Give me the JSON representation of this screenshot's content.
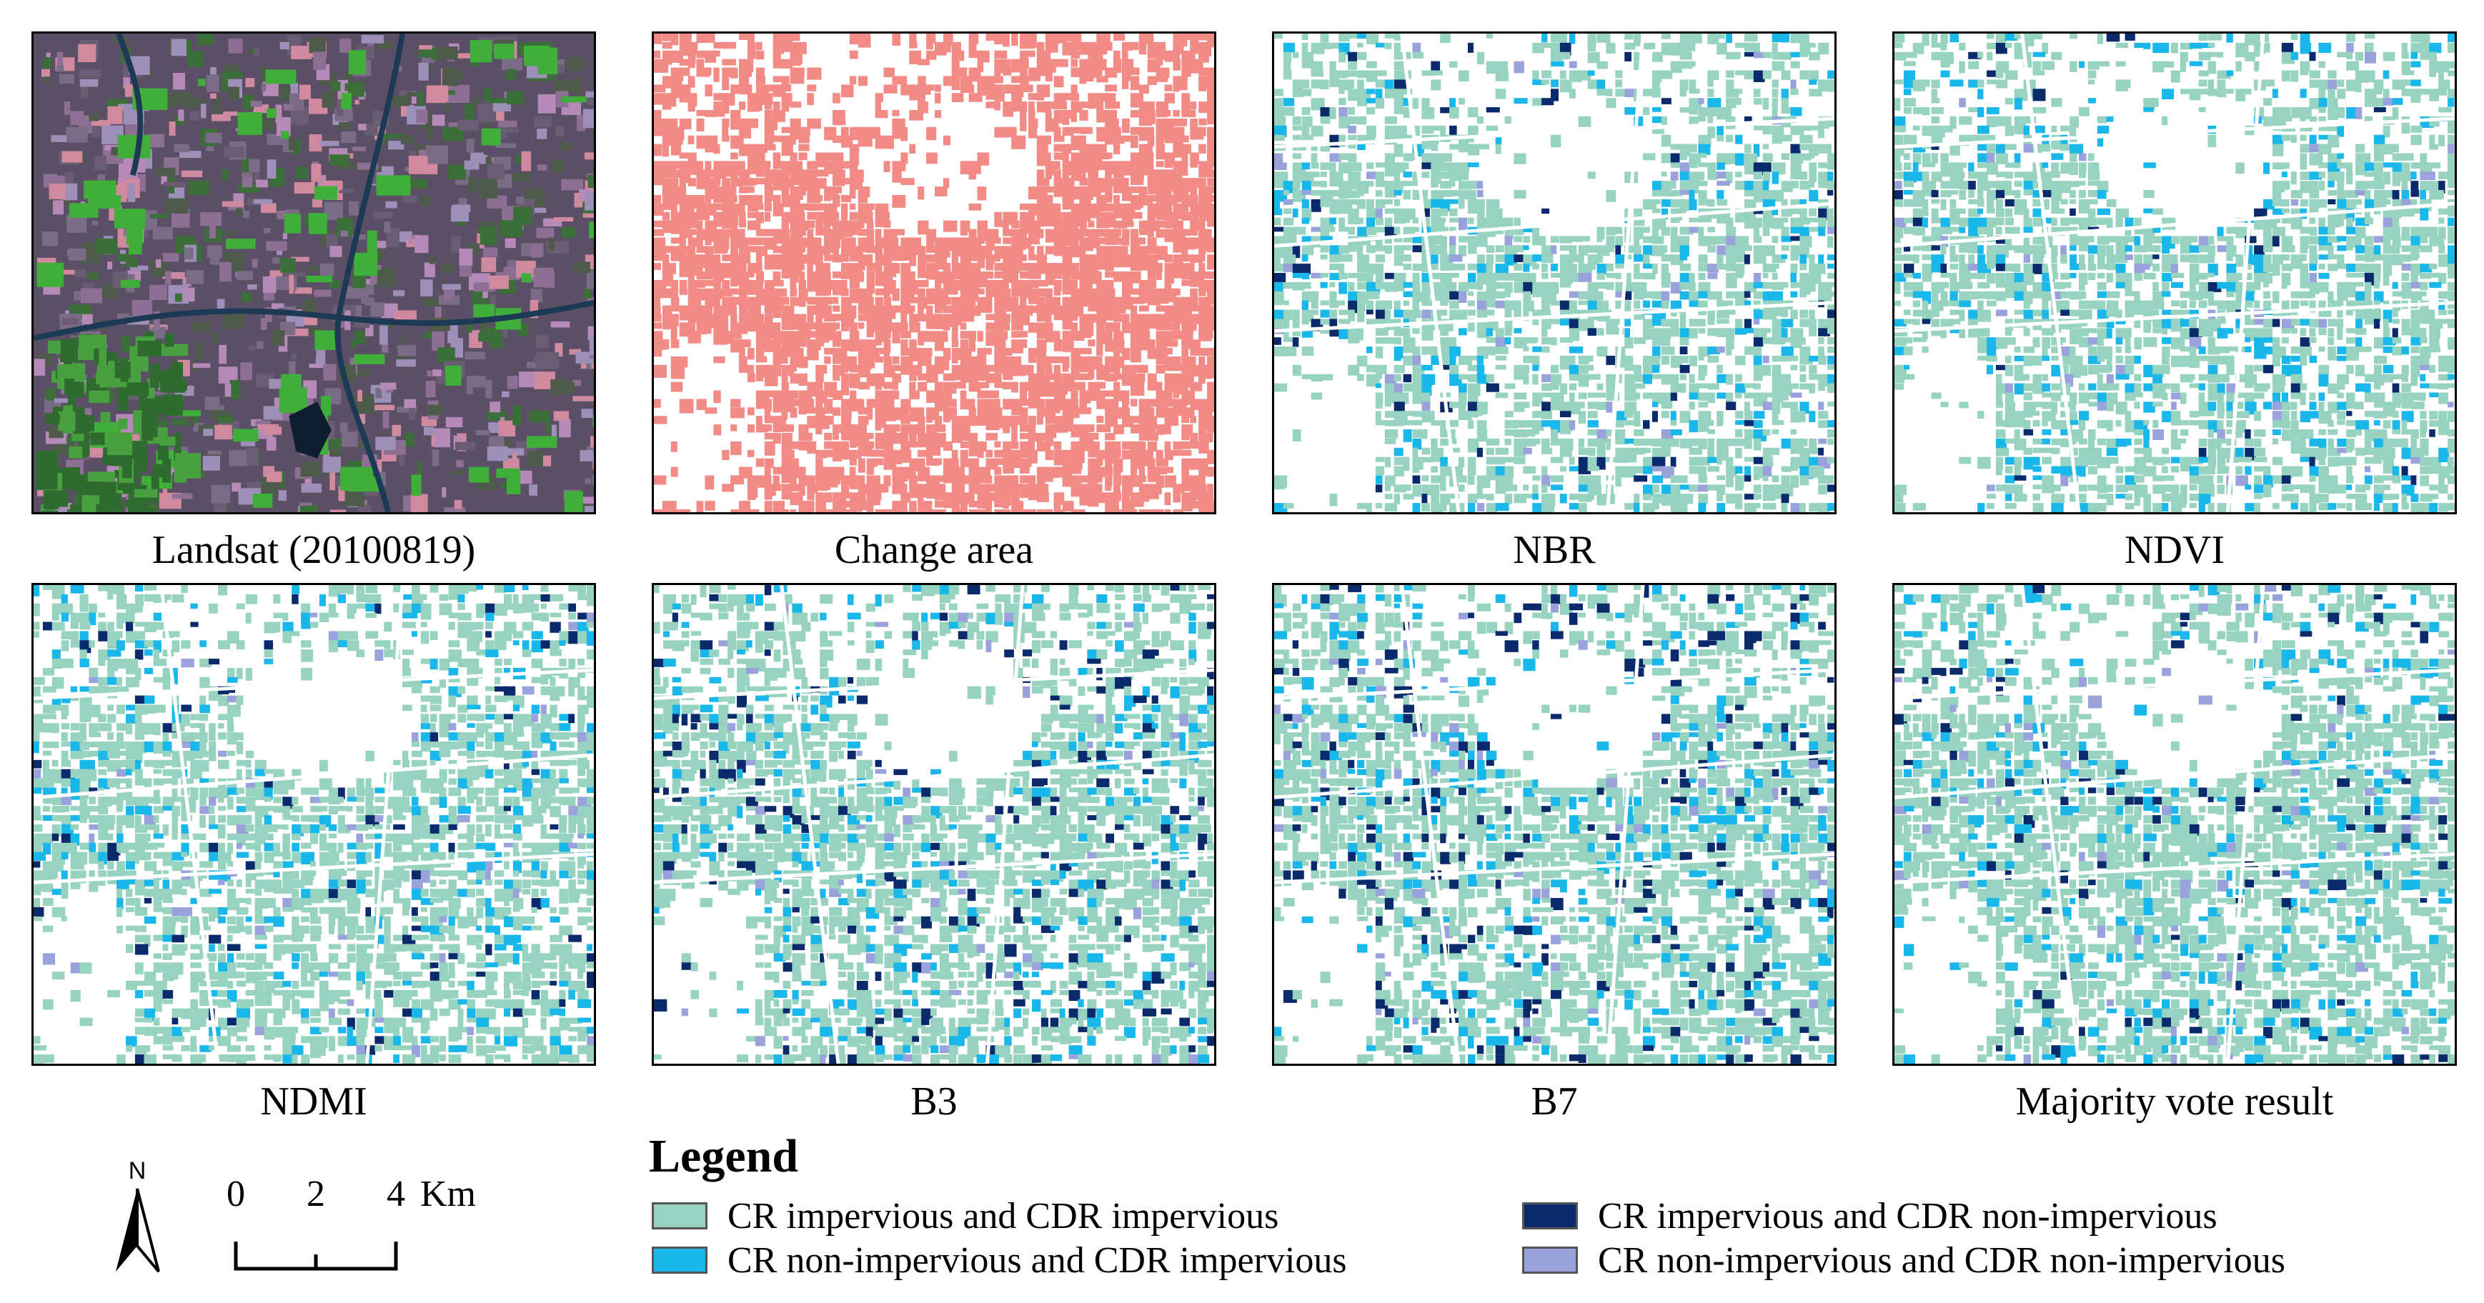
{
  "panels": [
    {
      "id": "landsat",
      "caption": "Landsat (20100819)"
    },
    {
      "id": "change",
      "caption": "Change area"
    },
    {
      "id": "nbr",
      "caption": "NBR"
    },
    {
      "id": "ndvi",
      "caption": "NDVI"
    },
    {
      "id": "ndmi",
      "caption": "NDMI"
    },
    {
      "id": "b3",
      "caption": "B3"
    },
    {
      "id": "b7",
      "caption": "B7"
    },
    {
      "id": "majority",
      "caption": "Majority vote result"
    }
  ],
  "legend": {
    "title": "Legend",
    "items": [
      {
        "label": "CR impervious and CDR impervious",
        "color": "#97d3c0"
      },
      {
        "label": "CR non-impervious  and CDR impervious",
        "color": "#1ab7ea"
      },
      {
        "label": "CR impervious  and CDR non-impervious",
        "color": "#0a2a6b"
      },
      {
        "label": "CR non-impervious  and CDR non-impervious",
        "color": "#9aa2dc"
      }
    ]
  },
  "scale": {
    "north": "N",
    "ticks": [
      "0",
      "2",
      "4"
    ],
    "unit": "Km"
  },
  "colors": {
    "change": "#f28a86",
    "landsat_base": "#5b4f66",
    "vegetation": "#3fae3a",
    "water": "#1c3a55"
  }
}
